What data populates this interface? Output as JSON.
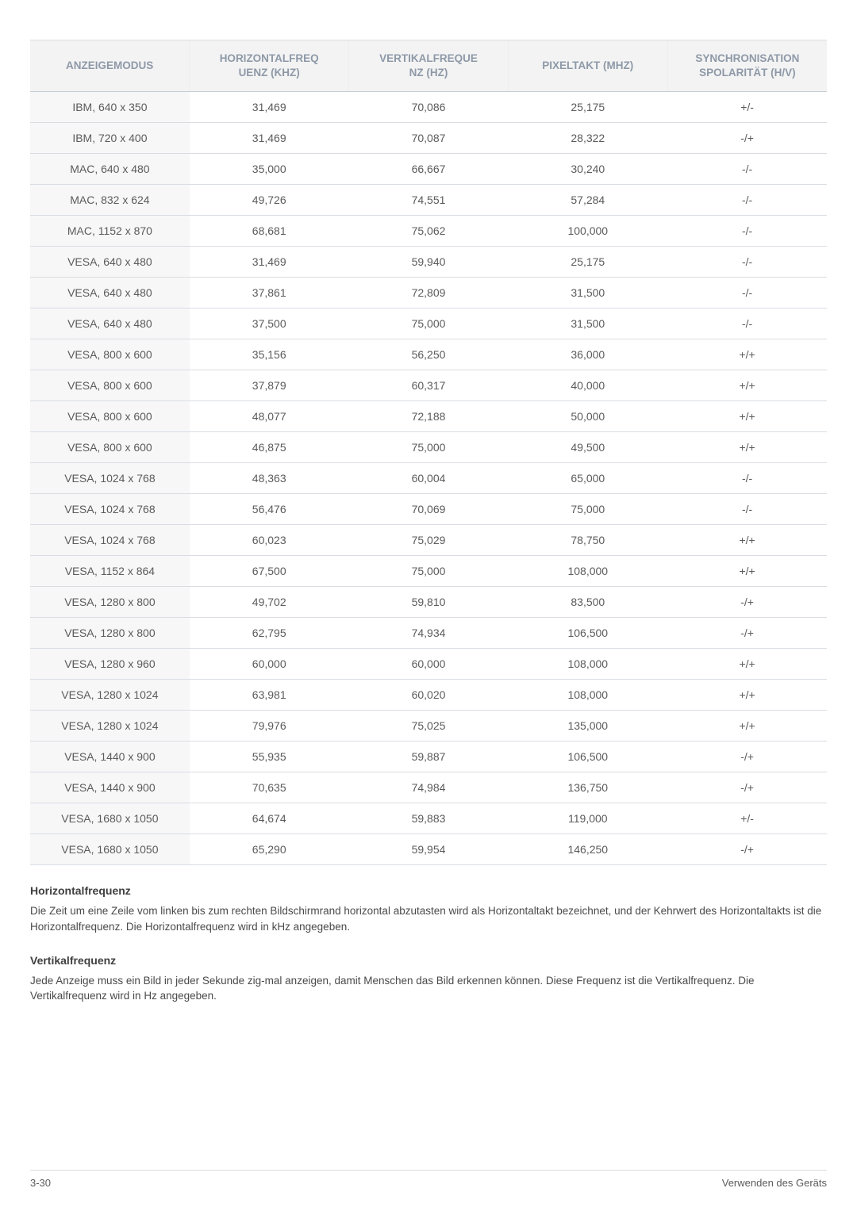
{
  "table": {
    "columns": [
      "ANZEIGEMODUS",
      "HORIZONTALFREQ\nUENZ (KHZ)",
      "VERTIKALFREQUE\nNZ (HZ)",
      "PIXELTAKT (MHZ)",
      "SYNCHRONISATION\nSPOLARITÄT (H/V)"
    ],
    "header_color": "#8e99a8",
    "header_bg": "#f3f3f3",
    "col1_bg": "#f7f7f8",
    "border_color": "#d9dde2",
    "rows": [
      [
        "IBM, 640 x 350",
        "31,469",
        "70,086",
        "25,175",
        "+/-"
      ],
      [
        "IBM, 720 x 400",
        "31,469",
        "70,087",
        "28,322",
        "-/+"
      ],
      [
        "MAC, 640 x 480",
        "35,000",
        "66,667",
        "30,240",
        "-/-"
      ],
      [
        "MAC, 832 x 624",
        "49,726",
        "74,551",
        "57,284",
        "-/-"
      ],
      [
        "MAC, 1152 x 870",
        "68,681",
        "75,062",
        "100,000",
        "-/-"
      ],
      [
        "VESA, 640 x 480",
        "31,469",
        "59,940",
        "25,175",
        "-/-"
      ],
      [
        "VESA, 640 x 480",
        "37,861",
        "72,809",
        "31,500",
        "-/-"
      ],
      [
        "VESA, 640 x 480",
        "37,500",
        "75,000",
        "31,500",
        "-/-"
      ],
      [
        "VESA, 800 x 600",
        "35,156",
        "56,250",
        "36,000",
        "+/+"
      ],
      [
        "VESA, 800 x 600",
        "37,879",
        "60,317",
        "40,000",
        "+/+"
      ],
      [
        "VESA, 800 x 600",
        "48,077",
        "72,188",
        "50,000",
        "+/+"
      ],
      [
        "VESA, 800 x 600",
        "46,875",
        "75,000",
        "49,500",
        "+/+"
      ],
      [
        "VESA, 1024 x 768",
        "48,363",
        "60,004",
        "65,000",
        "-/-"
      ],
      [
        "VESA, 1024 x 768",
        "56,476",
        "70,069",
        "75,000",
        "-/-"
      ],
      [
        "VESA, 1024 x 768",
        "60,023",
        "75,029",
        "78,750",
        "+/+"
      ],
      [
        "VESA, 1152 x 864",
        "67,500",
        "75,000",
        "108,000",
        "+/+"
      ],
      [
        "VESA, 1280 x 800",
        "49,702",
        "59,810",
        "83,500",
        "-/+"
      ],
      [
        "VESA, 1280 x 800",
        "62,795",
        "74,934",
        "106,500",
        "-/+"
      ],
      [
        "VESA, 1280 x 960",
        "60,000",
        "60,000",
        "108,000",
        "+/+"
      ],
      [
        "VESA, 1280 x 1024",
        "63,981",
        "60,020",
        "108,000",
        "+/+"
      ],
      [
        "VESA, 1280 x 1024",
        "79,976",
        "75,025",
        "135,000",
        "+/+"
      ],
      [
        "VESA, 1440 x 900",
        "55,935",
        "59,887",
        "106,500",
        "-/+"
      ],
      [
        "VESA, 1440 x 900",
        "70,635",
        "74,984",
        "136,750",
        "-/+"
      ],
      [
        "VESA, 1680 x 1050",
        "64,674",
        "59,883",
        "119,000",
        "+/-"
      ],
      [
        "VESA, 1680 x 1050",
        "65,290",
        "59,954",
        "146,250",
        "-/+"
      ]
    ]
  },
  "sections": {
    "h1": "Horizontalfrequenz",
    "p1": "Die Zeit um eine Zeile vom linken bis zum rechten Bildschirmrand horizontal abzutasten wird als Horizontaltakt bezeichnet, und der Kehrwert des Horizontaltakts ist die Horizontalfrequenz. Die Horizontalfrequenz wird in kHz angegeben.",
    "h2": "Vertikalfrequenz",
    "p2": "Jede Anzeige muss ein Bild in jeder Sekunde zig-mal anzeigen, damit Menschen das Bild erkennen können. Diese Frequenz ist die Vertikalfrequenz. Die Vertikalfrequenz wird in Hz angegeben."
  },
  "footer": {
    "left": "3-30",
    "right": "Verwenden des Geräts"
  }
}
